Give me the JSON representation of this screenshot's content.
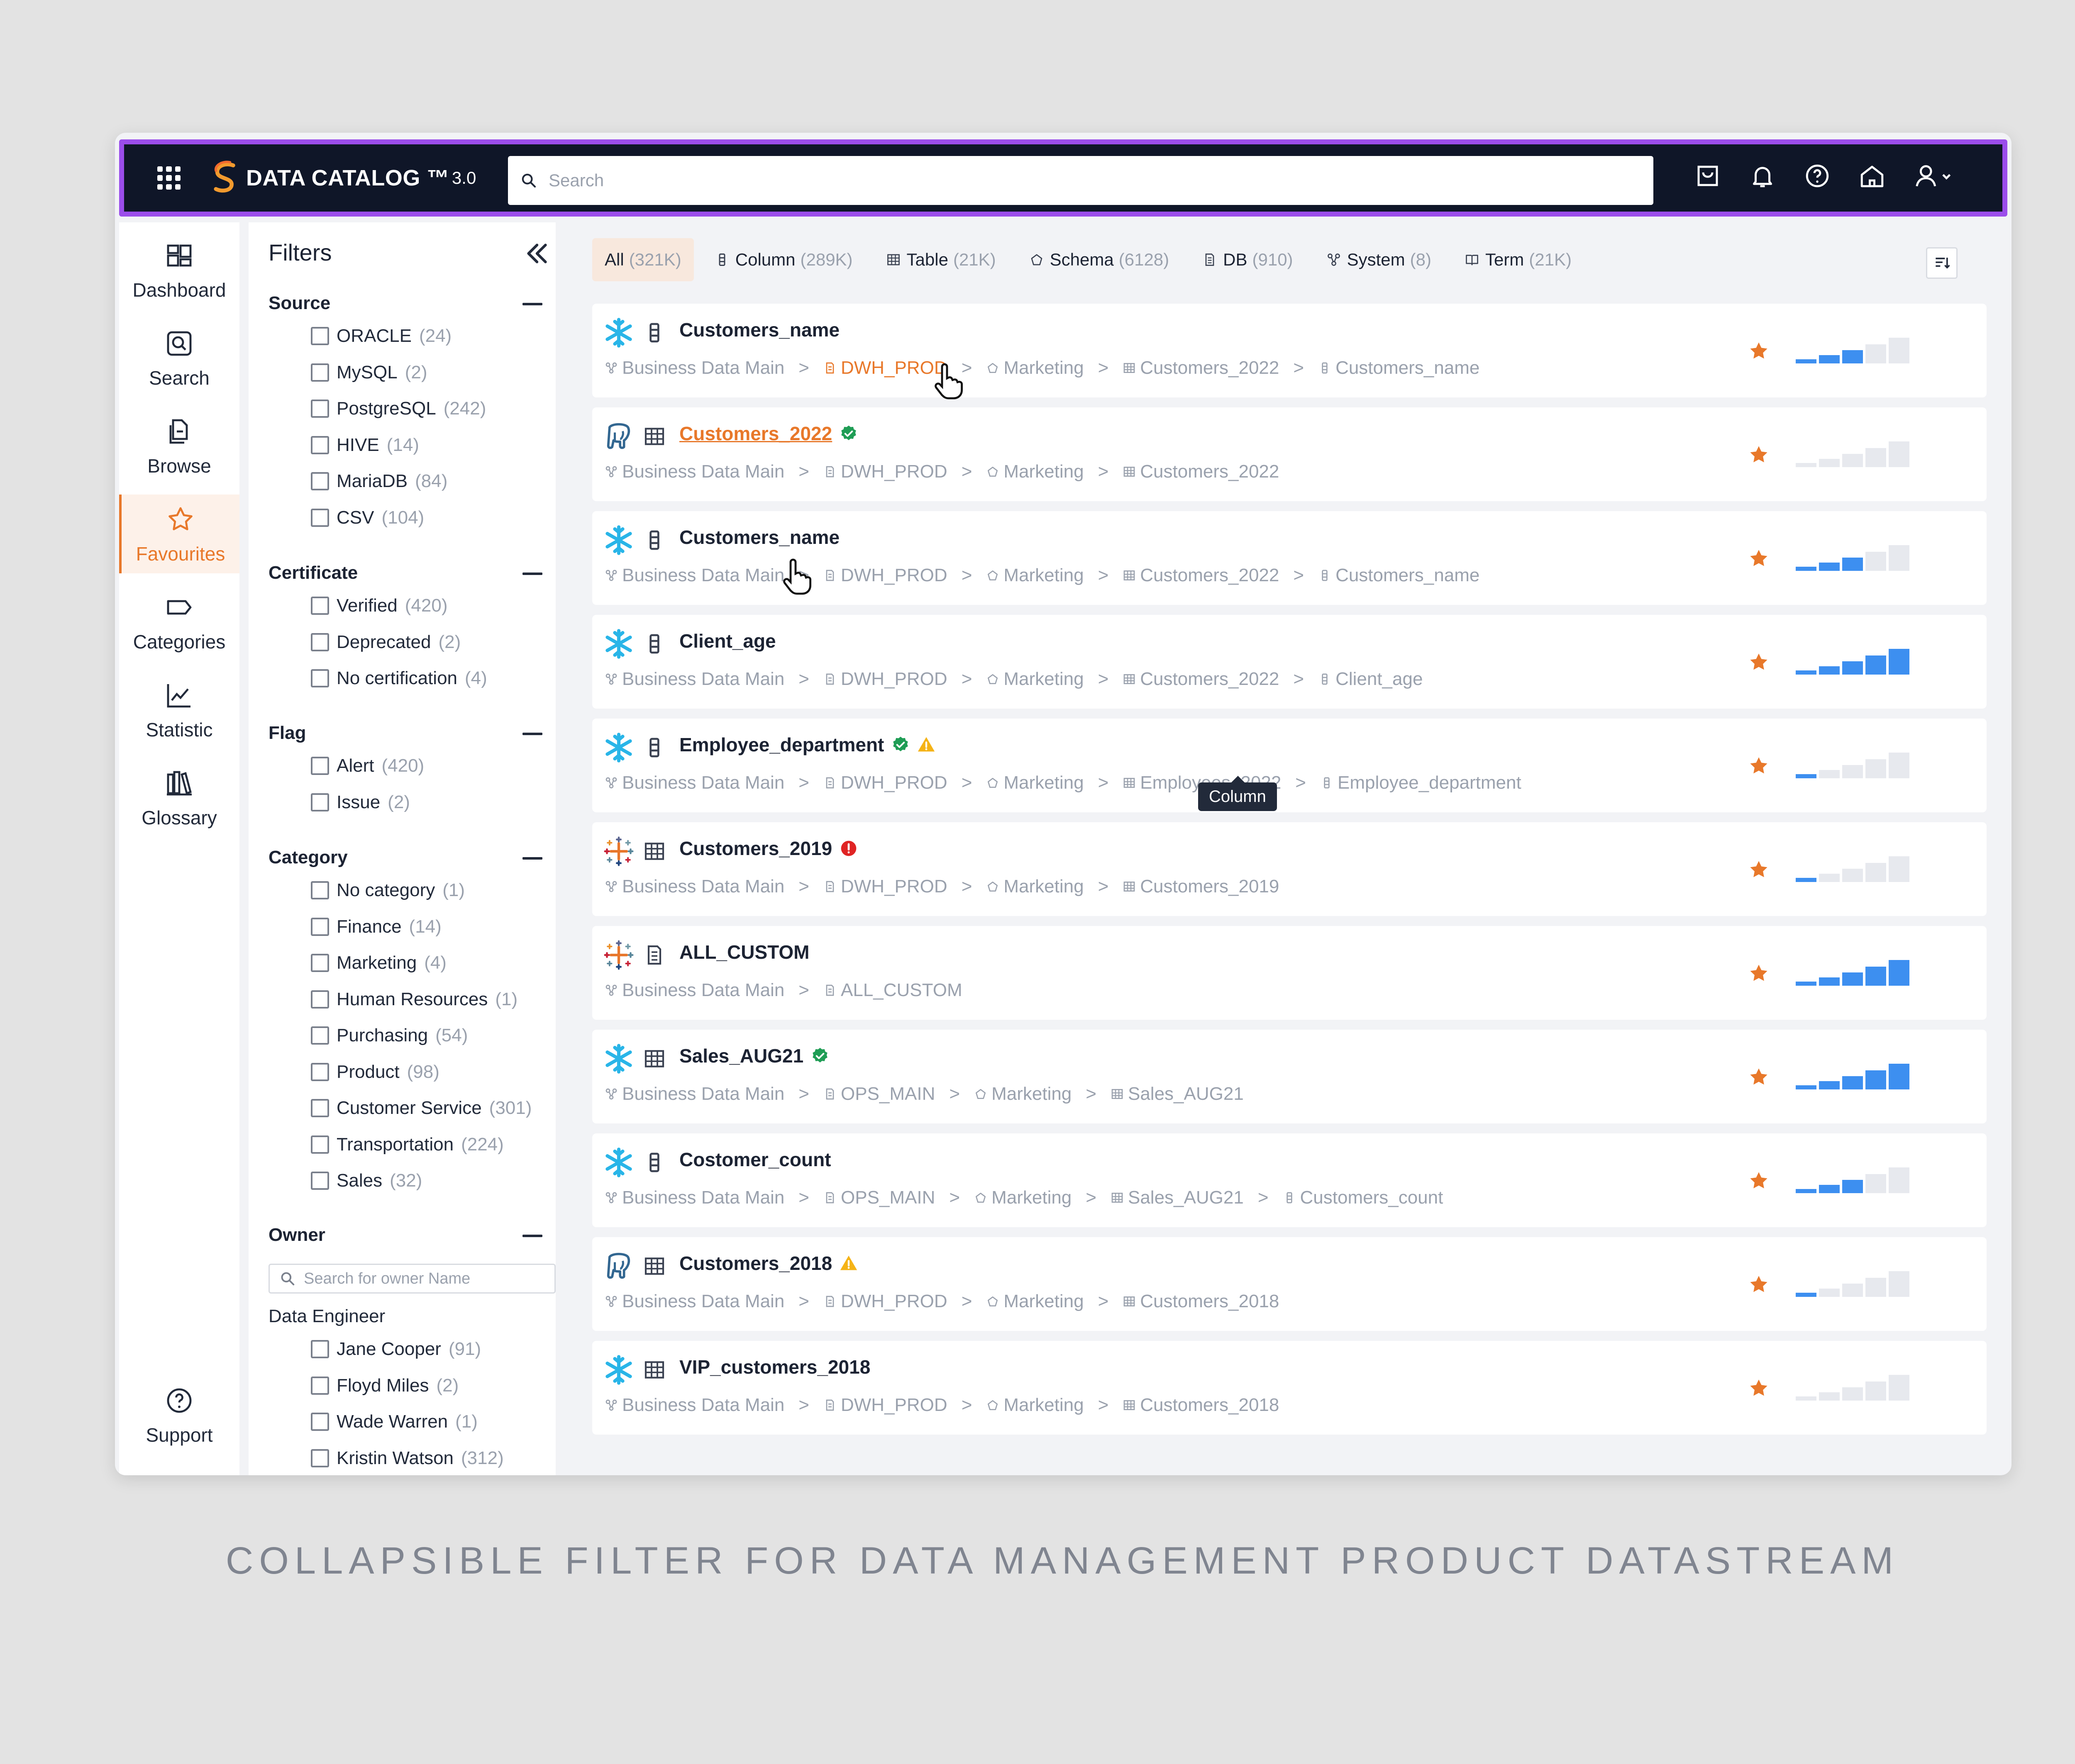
{
  "app": {
    "brand_name": "DATA CATALOG ™",
    "brand_version": "3.0",
    "search_placeholder": "Search"
  },
  "nav": {
    "items": [
      {
        "label": "Dashboard",
        "icon": "dashboard-icon"
      },
      {
        "label": "Search",
        "icon": "search-icon"
      },
      {
        "label": "Browse",
        "icon": "browse-icon"
      },
      {
        "label": "Favourites",
        "icon": "star-icon",
        "active": true
      },
      {
        "label": "Categories",
        "icon": "tag-icon"
      },
      {
        "label": "Statistic",
        "icon": "chart-icon"
      },
      {
        "label": "Glossary",
        "icon": "books-icon"
      }
    ],
    "support": "Support"
  },
  "filters": {
    "title": "Filters",
    "source": {
      "title": "Source",
      "items": [
        {
          "label": "ORACLE",
          "count": "(24)"
        },
        {
          "label": "MySQL",
          "count": "(2)"
        },
        {
          "label": "PostgreSQL",
          "count": "(242)"
        },
        {
          "label": "HIVE",
          "count": "(14)"
        },
        {
          "label": "MariaDB",
          "count": "(84)"
        },
        {
          "label": "CSV",
          "count": "(104)"
        }
      ]
    },
    "certificate": {
      "title": "Certificate",
      "items": [
        {
          "label": "Verified",
          "count": "(420)"
        },
        {
          "label": "Deprecated",
          "count": "(2)"
        },
        {
          "label": "No certification",
          "count": "(4)"
        }
      ]
    },
    "flag": {
      "title": "Flag",
      "items": [
        {
          "label": "Alert",
          "count": "(420)"
        },
        {
          "label": "Issue",
          "count": "(2)"
        }
      ]
    },
    "category": {
      "title": "Category",
      "items": [
        {
          "label": "No category",
          "count": "(1)"
        },
        {
          "label": "Finance",
          "count": "(14)"
        },
        {
          "label": "Marketing",
          "count": "(4)"
        },
        {
          "label": "Human Resources",
          "count": "(1)"
        },
        {
          "label": "Purchasing",
          "count": "(54)"
        },
        {
          "label": "Product",
          "count": "(98)"
        },
        {
          "label": "Customer Service",
          "count": "(301)"
        },
        {
          "label": "Transportation",
          "count": "(224)"
        },
        {
          "label": "Sales",
          "count": "(32)"
        }
      ]
    },
    "owner": {
      "title": "Owner",
      "search_placeholder": "Search for owner Name",
      "group": "Data Engineer",
      "items": [
        {
          "label": "Jane Cooper",
          "count": "(91)"
        },
        {
          "label": "Floyd Miles",
          "count": "(2)"
        },
        {
          "label": "Wade Warren",
          "count": "(1)"
        },
        {
          "label": "Kristin Watson",
          "count": "(312)"
        }
      ]
    }
  },
  "tabs": [
    {
      "label": "All",
      "count": "(321K)",
      "active": true
    },
    {
      "label": "Column",
      "count": "(289K)",
      "icon": "column-icon"
    },
    {
      "label": "Table",
      "count": "(21K)",
      "icon": "table-icon"
    },
    {
      "label": "Schema",
      "count": "(6128)",
      "icon": "schema-icon"
    },
    {
      "label": "DB",
      "count": "(910)",
      "icon": "db-icon"
    },
    {
      "label": "System",
      "count": "(8)",
      "icon": "system-icon"
    },
    {
      "label": "Term",
      "count": "(21K)",
      "icon": "book-icon"
    }
  ],
  "results": [
    {
      "source": "snowflake",
      "type": "column",
      "name": "Customers_name",
      "badges": [],
      "crumbs": [
        "Business Data Main",
        "DWH_PROD",
        "Marketing",
        "Customers_2022",
        "Customers_name"
      ],
      "hl_crumb": 1,
      "popularity": 3
    },
    {
      "source": "postgresql",
      "type": "table",
      "name": "Customers_2022",
      "badges": [
        "verified"
      ],
      "crumbs": [
        "Business Data Main",
        "DWH_PROD",
        "Marketing",
        "Customers_2022"
      ],
      "hl_name": true,
      "popularity": 0
    },
    {
      "source": "snowflake",
      "type": "column",
      "name": "Customers_name",
      "badges": [],
      "crumbs": [
        "Business Data Main",
        "DWH_PROD",
        "Marketing",
        "Customers_2022",
        "Customers_name"
      ],
      "popularity": 3
    },
    {
      "source": "snowflake",
      "type": "column",
      "name": "Client_age",
      "badges": [],
      "crumbs": [
        "Business Data Main",
        "DWH_PROD",
        "Marketing",
        "Customers_2022",
        "Client_age"
      ],
      "popularity": 5
    },
    {
      "source": "snowflake",
      "type": "column",
      "name": "Employee_department",
      "badges": [
        "verified",
        "warning"
      ],
      "crumbs": [
        "Business Data Main",
        "DWH_PROD",
        "Marketing",
        "Employees_2022",
        "Employee_department"
      ],
      "popularity": 1
    },
    {
      "source": "tableau",
      "type": "table",
      "name": "Customers_2019",
      "badges": [
        "alert"
      ],
      "crumbs": [
        "Business Data Main",
        "DWH_PROD",
        "Marketing",
        "Customers_2019"
      ],
      "popularity": 1
    },
    {
      "source": "tableau",
      "type": "db",
      "name": "ALL_CUSTOM",
      "badges": [],
      "crumbs": [
        "Business Data Main",
        "ALL_CUSTOM"
      ],
      "popularity": 5
    },
    {
      "source": "snowflake",
      "type": "table",
      "name": "Sales_AUG21",
      "badges": [
        "verified"
      ],
      "crumbs": [
        "Business Data Main",
        "OPS_MAIN",
        "Marketing",
        "Sales_AUG21"
      ],
      "popularity": 5
    },
    {
      "source": "snowflake",
      "type": "column",
      "name": "Costomer_count",
      "badges": [],
      "crumbs": [
        "Business Data Main",
        "OPS_MAIN",
        "Marketing",
        "Sales_AUG21",
        "Customers_count"
      ],
      "popularity": 3
    },
    {
      "source": "postgresql",
      "type": "table",
      "name": "Customers_2018",
      "badges": [
        "warning"
      ],
      "crumbs": [
        "Business Data Main",
        "DWH_PROD",
        "Marketing",
        "Customers_2018"
      ],
      "popularity": 1
    },
    {
      "source": "snowflake",
      "type": "table",
      "name": "VIP_customers_2018",
      "badges": [],
      "crumbs": [
        "Business Data Main",
        "DWH_PROD",
        "Marketing",
        "Customers_2018"
      ],
      "popularity": 0
    }
  ],
  "tooltip": "Column",
  "caption": "COLLAPSIBLE FILTER FOR DATA MANAGEMENT PRODUCT DATASTREAM",
  "colors": {
    "accent": "#e8782a",
    "topbar": "#0f1628",
    "topbar_border": "#9b4dea",
    "bar_on": "#3d8ff0",
    "bar_off": "#e7e9ee"
  }
}
